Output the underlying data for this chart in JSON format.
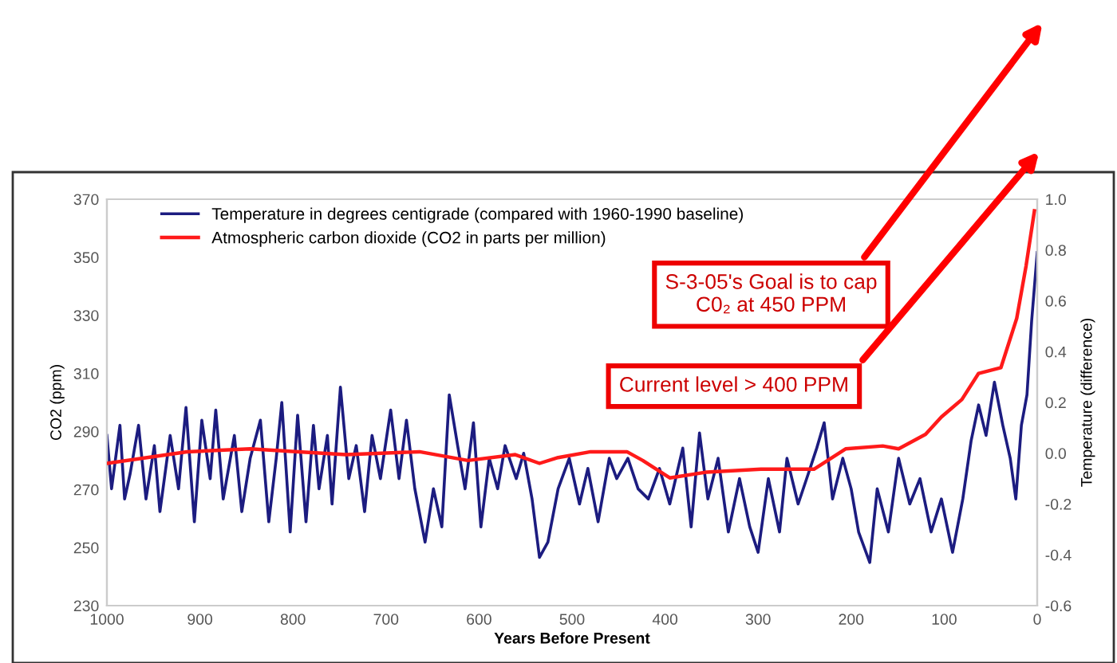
{
  "chart_data": {
    "type": "line",
    "xlabel": "Years Before Present",
    "ylabel": "CO2 (ppm)",
    "y2label": "Temperature (difference)",
    "xlim": [
      1000,
      0
    ],
    "xticks": [
      1000,
      900,
      800,
      700,
      600,
      500,
      400,
      300,
      200,
      100,
      0
    ],
    "ylim": [
      230,
      370
    ],
    "yticks": [
      230,
      250,
      270,
      290,
      310,
      330,
      350,
      370
    ],
    "y2lim": [
      -0.6,
      1.0
    ],
    "y2ticks": [
      -0.6,
      -0.4,
      -0.2,
      {
        "value": 0,
        "label": "0.0"
      },
      0.2,
      0.4,
      0.6,
      0.8,
      {
        "value": 1,
        "label": "1.0"
      }
    ],
    "legend": "top left",
    "grid": false,
    "marker": "none",
    "line_style": "solid",
    "series": [
      {
        "name": "Temperature in degrees centigrade (compared with 1960-1990 baseline)",
        "color": "#1c1c80",
        "axis": "y2",
        "x": [
          1000,
          995,
          986,
          981,
          975,
          966,
          958,
          949,
          943,
          932,
          923,
          915,
          906,
          898,
          889,
          883,
          875,
          863,
          855,
          846,
          835,
          826,
          818,
          812,
          803,
          795,
          786,
          778,
          772,
          763,
          758,
          749,
          740,
          732,
          723,
          715,
          706,
          695,
          686,
          678,
          669,
          658,
          649,
          640,
          632,
          623,
          615,
          606,
          598,
          589,
          580,
          572,
          560,
          552,
          543,
          535,
          526,
          515,
          503,
          492,
          483,
          472,
          460,
          452,
          440,
          429,
          418,
          406,
          395,
          381,
          372,
          363,
          354,
          343,
          332,
          320,
          309,
          300,
          289,
          277,
          269,
          257,
          246,
          237,
          229,
          220,
          209,
          200,
          192,
          180,
          172,
          160,
          149,
          137,
          126,
          114,
          103,
          91,
          80,
          71,
          63,
          55,
          46,
          37,
          29,
          23,
          17,
          11,
          6,
          0
        ],
        "values": [
          0.07,
          -0.14,
          0.11,
          -0.18,
          -0.08,
          0.11,
          -0.18,
          0.03,
          -0.23,
          0.07,
          -0.14,
          0.18,
          -0.27,
          0.13,
          -0.1,
          0.17,
          -0.18,
          0.07,
          -0.23,
          -0.02,
          0.13,
          -0.27,
          -0.02,
          0.2,
          -0.31,
          0.15,
          -0.27,
          0.11,
          -0.14,
          0.07,
          -0.2,
          0.26,
          -0.1,
          0.03,
          -0.23,
          0.07,
          -0.1,
          0.17,
          -0.1,
          0.13,
          -0.14,
          -0.35,
          -0.14,
          -0.29,
          0.23,
          0.03,
          -0.14,
          0.12,
          -0.29,
          -0.02,
          -0.14,
          0.03,
          -0.1,
          0.0,
          -0.18,
          -0.41,
          -0.35,
          -0.14,
          -0.02,
          -0.2,
          -0.06,
          -0.27,
          -0.02,
          -0.1,
          -0.02,
          -0.14,
          -0.18,
          -0.06,
          -0.2,
          0.02,
          -0.29,
          0.08,
          -0.18,
          -0.02,
          -0.31,
          -0.1,
          -0.29,
          -0.39,
          -0.1,
          -0.31,
          -0.02,
          -0.2,
          -0.08,
          0.02,
          0.12,
          -0.18,
          -0.02,
          -0.14,
          -0.31,
          -0.43,
          -0.14,
          -0.31,
          -0.02,
          -0.2,
          -0.1,
          -0.31,
          -0.18,
          -0.39,
          -0.18,
          0.05,
          0.19,
          0.07,
          0.28,
          0.11,
          -0.02,
          -0.18,
          0.11,
          0.23,
          0.52,
          0.79
        ]
      },
      {
        "name": "Atmospheric carbon dioxide (CO2 in parts per million)",
        "color": "#ff1a1a",
        "x": [
          1000,
          914,
          846,
          794,
          743,
          664,
          612,
          561,
          535,
          515,
          480,
          441,
          424,
          395,
          355,
          297,
          240,
          206,
          166,
          149,
          120,
          103,
          81,
          63,
          39,
          22,
          12,
          3
        ],
        "values": [
          279,
          283,
          284,
          283,
          282,
          283,
          280,
          282,
          279,
          281,
          283,
          283,
          280,
          274,
          276,
          277,
          277,
          284,
          285,
          284,
          289,
          295,
          301,
          310,
          312,
          329,
          347,
          366
        ]
      }
    ],
    "annotations": [
      "S-3-05's Goal is to cap\nC0₂ at 450 PPM",
      "Current level > 400 PPM"
    ]
  }
}
